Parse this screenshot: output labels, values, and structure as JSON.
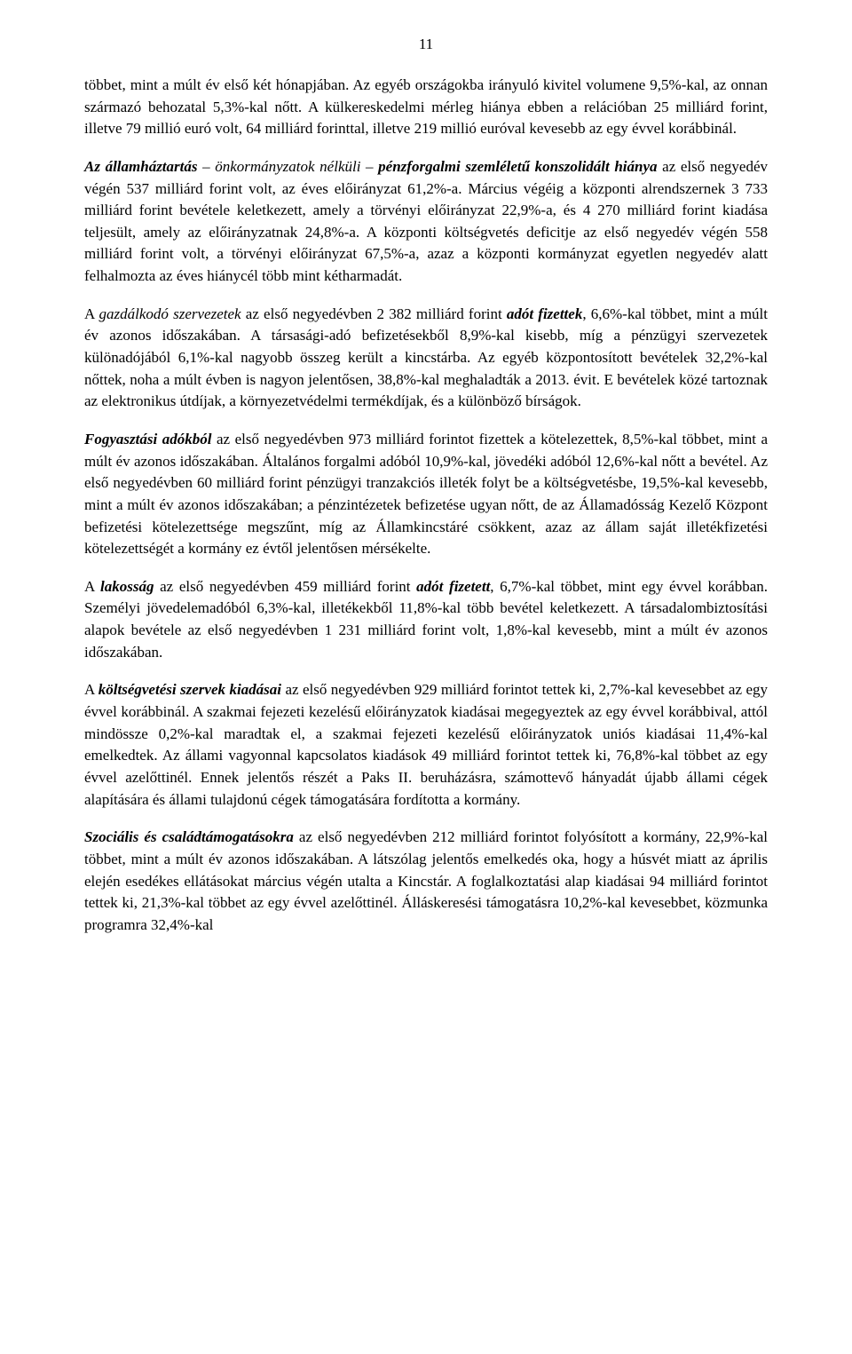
{
  "pageNumber": "11",
  "paragraphs": {
    "p1a": "többet, mint a múlt év első két hónapjában. Az egyéb országokba irányuló kivitel volumene 9,5%-kal, az onnan származó behozatal 5,3%-kal nőtt. A külkereskedelmi mérleg hiánya ebben a relációban 25 milliárd forint, illetve 79 millió euró volt, 64 milliárd forinttal, illetve 219 millió euróval kevesebb az egy évvel korábbinál.",
    "p2a": "Az államháztartás",
    "p2b": " – önkormányzatok nélküli – ",
    "p2c": "pénzforgalmi szemléletű konszolidált hiánya",
    "p2d": " az első negyedév végén 537 milliárd forint volt, az éves előirányzat 61,2%-a. Március végéig a központi alrendszernek 3 733 milliárd forint bevétele keletkezett, amely a törvényi előirányzat 22,9%-a, és 4 270 milliárd forint kiadása teljesült, amely az előirányzatnak 24,8%-a. A központi költségvetés deficitje az első negyedév végén 558 milliárd forint volt, a törvényi előirányzat 67,5%-a, azaz a központi kormányzat egyetlen negyedév alatt felhalmozta az éves hiánycél több mint kétharmadát.",
    "p3a": "A ",
    "p3b": "gazdálkodó szervezetek",
    "p3c": " az első negyedévben 2 382 milliárd forint ",
    "p3d": "adót fizettek",
    "p3e": ", 6,6%-kal többet, mint a múlt év azonos időszakában. A társasági-adó befizetésekből 8,9%-kal kisebb, míg a pénzügyi szervezetek különadójából 6,1%-kal nagyobb összeg került a kincstárba. Az egyéb központosított bevételek 32,2%-kal nőttek, noha a múlt évben is nagyon jelentősen, 38,8%-kal meghaladták a 2013. évit. E bevételek közé tartoznak az elektronikus útdíjak, a környezetvédelmi termékdíjak, és a különböző bírságok.",
    "p4a": "Fogyasztási adókból",
    "p4b": " az első negyedévben 973 milliárd forintot fizettek a kötelezettek, 8,5%-kal többet, mint a múlt év azonos időszakában. Általános forgalmi adóból 10,9%-kal, jövedéki adóból 12,6%-kal nőtt a bevétel. Az első negyedévben 60 milliárd forint pénzügyi tranzakciós illeték folyt be a költségvetésbe, 19,5%-kal kevesebb, mint a múlt év azonos időszakában; a pénzintézetek befizetése ugyan nőtt, de az Államadósság Kezelő Központ befizetési kötelezettsége megszűnt, míg az Államkincstáré csökkent, azaz az állam saját illetékfizetési kötelezettségét a kormány ez évtől jelentősen mérsékelte.",
    "p5a": "A ",
    "p5b": "lakosság",
    "p5c": " az első negyedévben 459 milliárd forint ",
    "p5d": "adót fizetett",
    "p5e": ", 6,7%-kal többet, mint egy évvel korábban. Személyi jövedelemadóból 6,3%-kal, illetékekből 11,8%-kal több bevétel keletkezett. A társadalombiztosítási alapok bevétele az első negyedévben 1 231 milliárd forint volt, 1,8%-kal kevesebb, mint a múlt év azonos időszakában.",
    "p6a": "A ",
    "p6b": "költségvetési szervek kiadásai",
    "p6c": " az első negyedévben 929 milliárd forintot tettek ki, 2,7%-kal kevesebbet az egy évvel korábbinál. A szakmai fejezeti kezelésű előirányzatok kiadásai megegyeztek az egy évvel korábbival, attól mindössze 0,2%-kal maradtak el, a szakmai fejezeti kezelésű előirányzatok uniós kiadásai 11,4%-kal emelkedtek. Az állami vagyonnal kapcsolatos kiadások 49 milliárd forintot tettek ki, 76,8%-kal többet az egy évvel azelőttinél. Ennek jelentős részét a Paks II. beruházásra, számottevő hányadát újabb állami cégek alapítására és állami tulajdonú cégek támogatására fordította a kormány.",
    "p7a": "Szociális és családtámogatásokra",
    "p7b": " az első negyedévben 212 milliárd forintot folyósított a kormány, 22,9%-kal többet, mint a múlt év azonos időszakában. A látszólag jelentős emelkedés oka, hogy a húsvét miatt az április elején esedékes ellátásokat március végén utalta a Kincstár. A foglalkoztatási alap kiadásai 94 milliárd forintot tettek ki, 21,3%-kal többet az egy évvel azelőttinél. Álláskeresési támogatásra 10,2%-kal kevesebbet, közmunka programra 32,4%-kal"
  }
}
